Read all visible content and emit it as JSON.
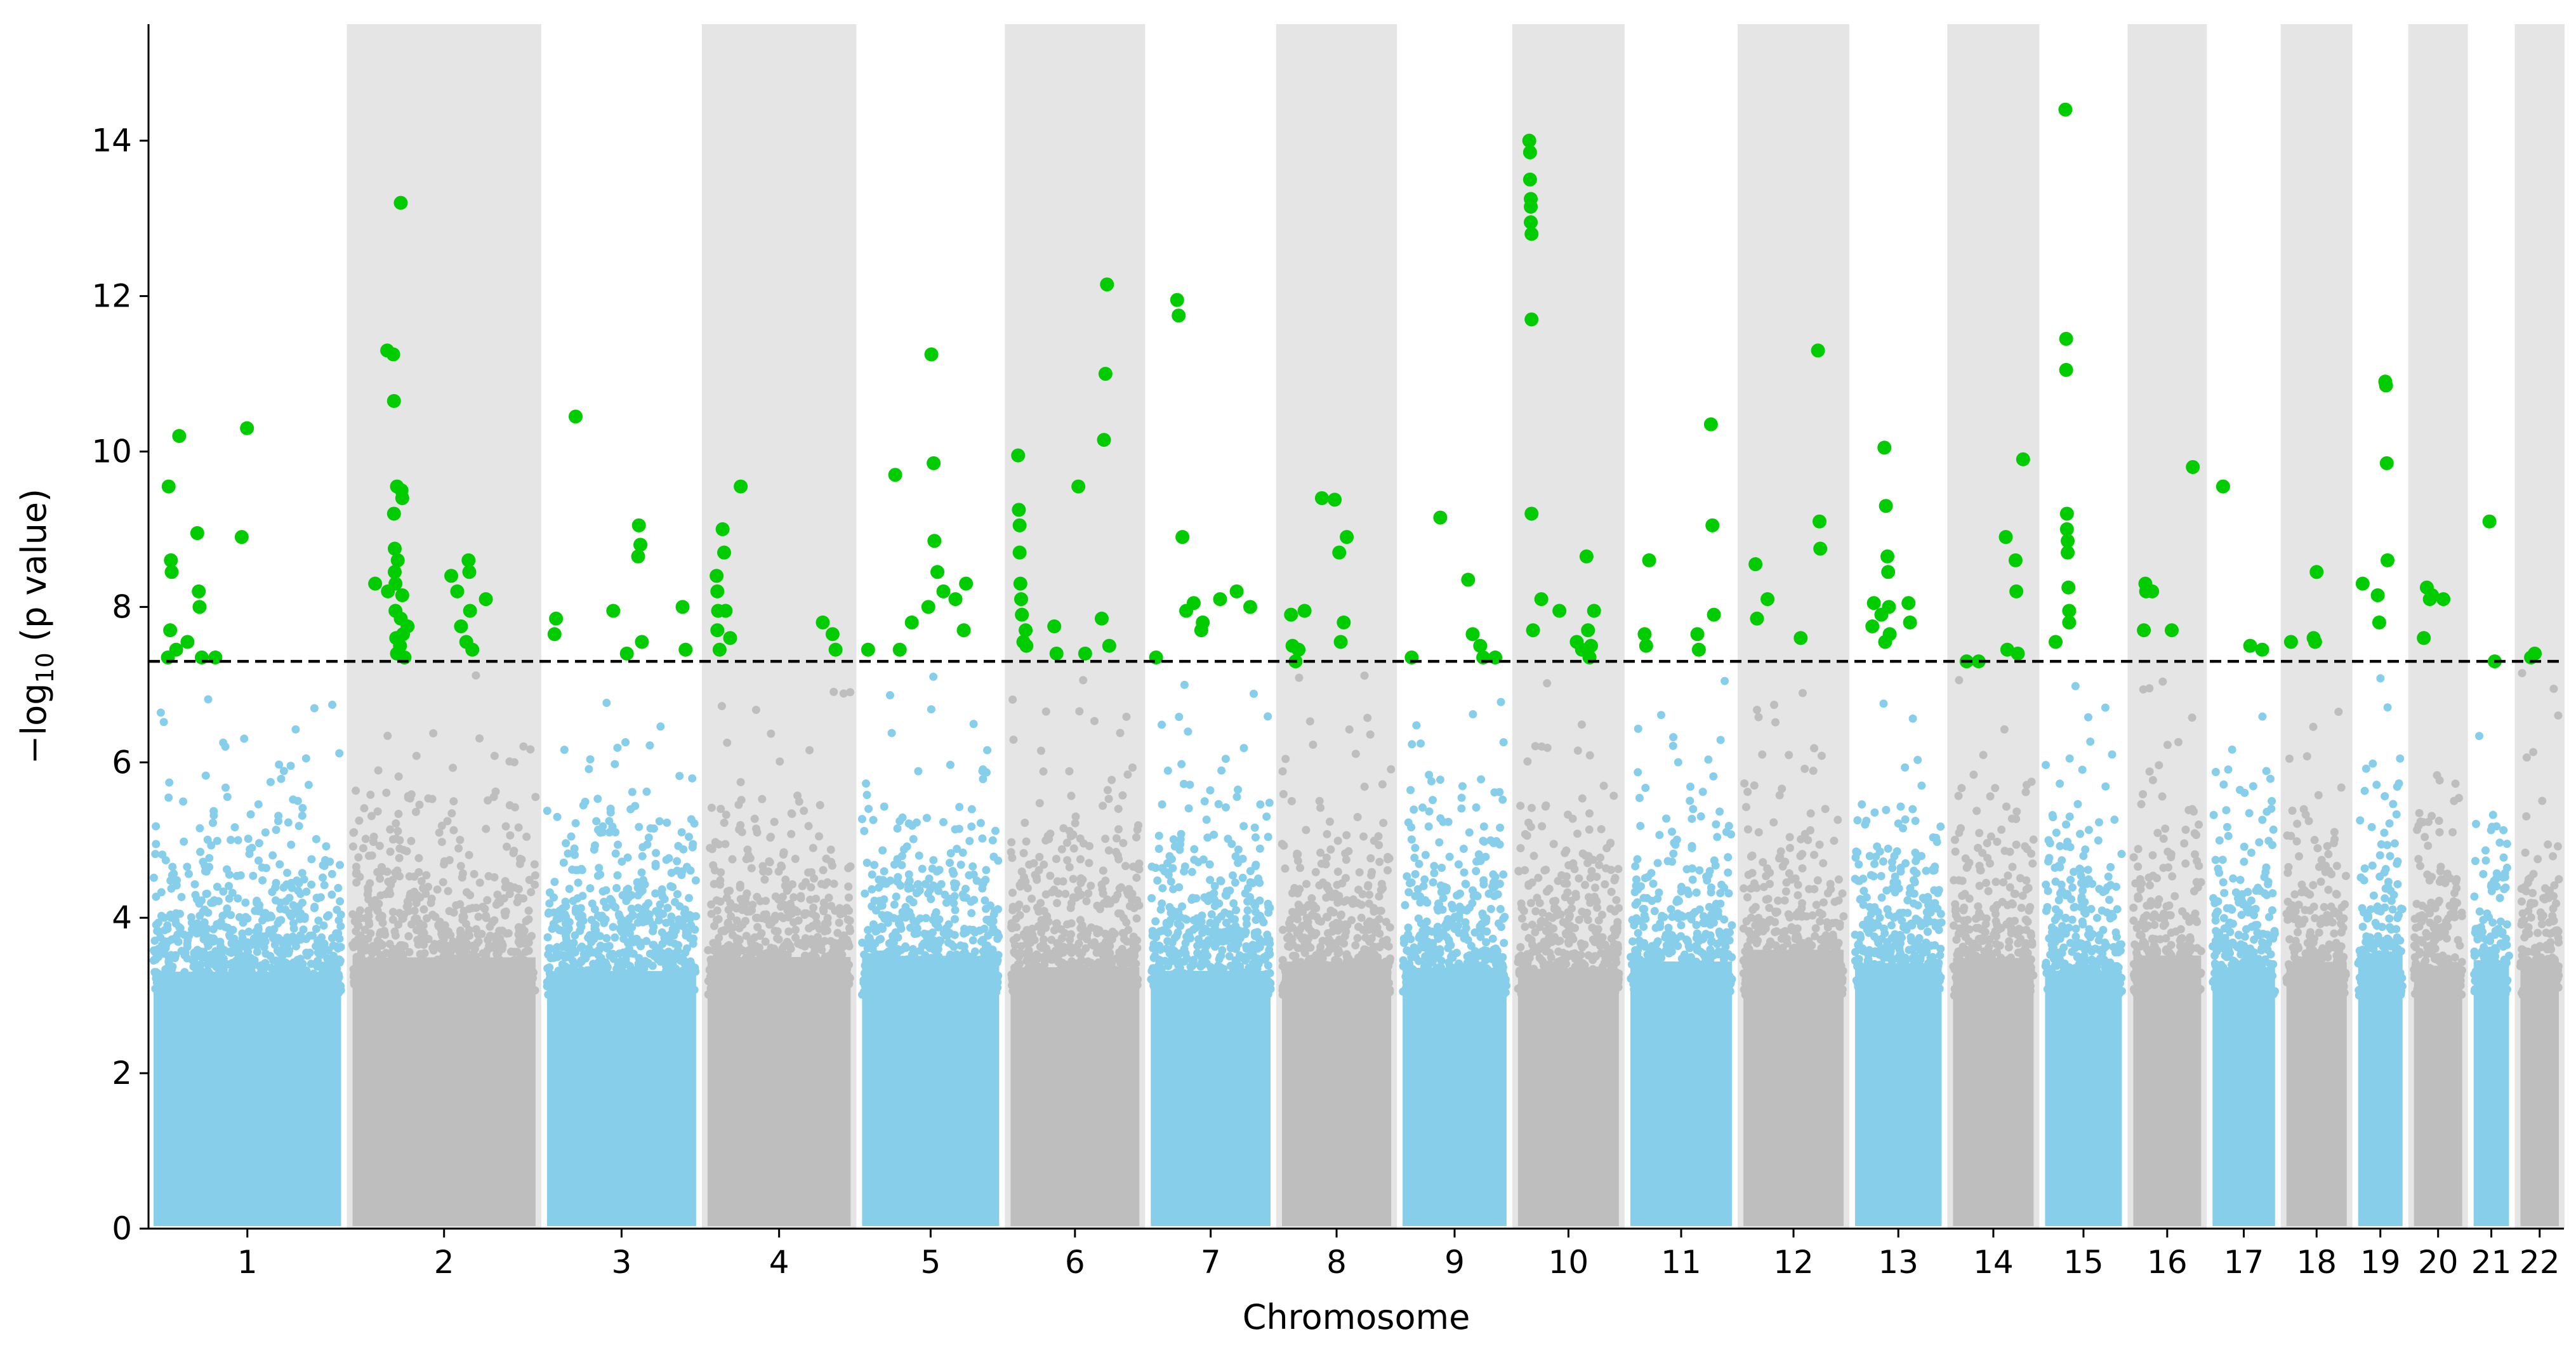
{
  "chart_data": {
    "type": "scatter",
    "title": "",
    "xlabel": "Chromosome",
    "ylabel_main": "−log",
    "ylabel_sub": "10",
    "ylabel_tail": " (p value)",
    "ylim": [
      0,
      15.5
    ],
    "yticks": [
      "0",
      "2",
      "4",
      "6",
      "8",
      "10",
      "12",
      "14"
    ],
    "significance_threshold": 7.3,
    "grid": false,
    "legend": "none",
    "colors": {
      "odd_chromosome": "#87ceeb",
      "even_chromosome": "#bebebe",
      "significant": "#00cc00",
      "even_band": "#e5e5e5",
      "threshold": "#000000"
    },
    "chromosomes": [
      {
        "label": "1",
        "start": 0,
        "end": 249
      },
      {
        "label": "2",
        "start": 249,
        "end": 492
      },
      {
        "label": "3",
        "start": 492,
        "end": 690
      },
      {
        "label": "4",
        "start": 690,
        "end": 880
      },
      {
        "label": "5",
        "start": 880,
        "end": 1062
      },
      {
        "label": "6",
        "start": 1062,
        "end": 1233
      },
      {
        "label": "7",
        "start": 1233,
        "end": 1392
      },
      {
        "label": "8",
        "start": 1392,
        "end": 1537
      },
      {
        "label": "9",
        "start": 1537,
        "end": 1675
      },
      {
        "label": "10",
        "start": 1675,
        "end": 1809
      },
      {
        "label": "11",
        "start": 1809,
        "end": 1944
      },
      {
        "label": "12",
        "start": 1944,
        "end": 2077
      },
      {
        "label": "13",
        "start": 2077,
        "end": 2192
      },
      {
        "label": "14",
        "start": 2192,
        "end": 2299
      },
      {
        "label": "15",
        "start": 2299,
        "end": 2401
      },
      {
        "label": "16",
        "start": 2401,
        "end": 2491
      },
      {
        "label": "17",
        "start": 2491,
        "end": 2574
      },
      {
        "label": "18",
        "start": 2574,
        "end": 2654
      },
      {
        "label": "19",
        "start": 2654,
        "end": 2713
      },
      {
        "label": "20",
        "start": 2713,
        "end": 2777
      },
      {
        "label": "21",
        "start": 2777,
        "end": 2824
      },
      {
        "label": "22",
        "start": 2824,
        "end": 2875
      }
    ],
    "significant_points": [
      {
        "chr": "1",
        "x": 20,
        "y": 9.55
      },
      {
        "chr": "1",
        "x": 23,
        "y": 8.6
      },
      {
        "chr": "1",
        "x": 24,
        "y": 8.45
      },
      {
        "chr": "1",
        "x": 22,
        "y": 7.7
      },
      {
        "chr": "1",
        "x": 19,
        "y": 7.35
      },
      {
        "chr": "1",
        "x": 34,
        "y": 10.2
      },
      {
        "chr": "1",
        "x": 30,
        "y": 7.45
      },
      {
        "chr": "1",
        "x": 45,
        "y": 7.55
      },
      {
        "chr": "1",
        "x": 58,
        "y": 8.95
      },
      {
        "chr": "1",
        "x": 60,
        "y": 8.2
      },
      {
        "chr": "1",
        "x": 61,
        "y": 8.0
      },
      {
        "chr": "1",
        "x": 64,
        "y": 7.35
      },
      {
        "chr": "1",
        "x": 117,
        "y": 8.9
      },
      {
        "chr": "1",
        "x": 124,
        "y": 10.3
      },
      {
        "chr": "1",
        "x": 82,
        "y": 7.35
      },
      {
        "chr": "2",
        "x": 279,
        "y": 8.3
      },
      {
        "chr": "2",
        "x": 295,
        "y": 11.3
      },
      {
        "chr": "2",
        "x": 303,
        "y": 11.25
      },
      {
        "chr": "2",
        "x": 304,
        "y": 10.65
      },
      {
        "chr": "2",
        "x": 296,
        "y": 8.2
      },
      {
        "chr": "2",
        "x": 304,
        "y": 9.2
      },
      {
        "chr": "2",
        "x": 305,
        "y": 8.75
      },
      {
        "chr": "2",
        "x": 305,
        "y": 8.45
      },
      {
        "chr": "2",
        "x": 306,
        "y": 8.3
      },
      {
        "chr": "2",
        "x": 306,
        "y": 7.95
      },
      {
        "chr": "2",
        "x": 307,
        "y": 7.6
      },
      {
        "chr": "2",
        "x": 308,
        "y": 7.4
      },
      {
        "chr": "2",
        "x": 308,
        "y": 9.55
      },
      {
        "chr": "2",
        "x": 309,
        "y": 8.6
      },
      {
        "chr": "2",
        "x": 312,
        "y": 7.5
      },
      {
        "chr": "2",
        "x": 313,
        "y": 7.85
      },
      {
        "chr": "2",
        "x": 314,
        "y": 9.5
      },
      {
        "chr": "2",
        "x": 315,
        "y": 9.4
      },
      {
        "chr": "2",
        "x": 315,
        "y": 8.15
      },
      {
        "chr": "2",
        "x": 316,
        "y": 7.65
      },
      {
        "chr": "2",
        "x": 318,
        "y": 7.35
      },
      {
        "chr": "2",
        "x": 322,
        "y": 7.75
      },
      {
        "chr": "2",
        "x": 313,
        "y": 13.2
      },
      {
        "chr": "2",
        "x": 380,
        "y": 8.4
      },
      {
        "chr": "2",
        "x": 388,
        "y": 8.2
      },
      {
        "chr": "2",
        "x": 393,
        "y": 7.75
      },
      {
        "chr": "2",
        "x": 400,
        "y": 7.55
      },
      {
        "chr": "2",
        "x": 403,
        "y": 8.6
      },
      {
        "chr": "2",
        "x": 404,
        "y": 8.45
      },
      {
        "chr": "2",
        "x": 405,
        "y": 7.95
      },
      {
        "chr": "2",
        "x": 408,
        "y": 7.45
      },
      {
        "chr": "2",
        "x": 426,
        "y": 8.1
      },
      {
        "chr": "3",
        "x": 502,
        "y": 7.65
      },
      {
        "chr": "3",
        "x": 504,
        "y": 7.85
      },
      {
        "chr": "3",
        "x": 530,
        "y": 10.45
      },
      {
        "chr": "3",
        "x": 580,
        "y": 7.95
      },
      {
        "chr": "3",
        "x": 598,
        "y": 7.4
      },
      {
        "chr": "3",
        "x": 614,
        "y": 9.05
      },
      {
        "chr": "3",
        "x": 616,
        "y": 8.8
      },
      {
        "chr": "3",
        "x": 613,
        "y": 8.65
      },
      {
        "chr": "3",
        "x": 618,
        "y": 7.55
      },
      {
        "chr": "3",
        "x": 672,
        "y": 8.0
      },
      {
        "chr": "3",
        "x": 676,
        "y": 7.45
      },
      {
        "chr": "4",
        "x": 702,
        "y": 8.4
      },
      {
        "chr": "4",
        "x": 703,
        "y": 8.2
      },
      {
        "chr": "4",
        "x": 704,
        "y": 7.95
      },
      {
        "chr": "4",
        "x": 703,
        "y": 7.7
      },
      {
        "chr": "4",
        "x": 706,
        "y": 7.45
      },
      {
        "chr": "4",
        "x": 710,
        "y": 9.0
      },
      {
        "chr": "4",
        "x": 712,
        "y": 8.7
      },
      {
        "chr": "4",
        "x": 714,
        "y": 7.95
      },
      {
        "chr": "4",
        "x": 720,
        "y": 7.6
      },
      {
        "chr": "4",
        "x": 734,
        "y": 9.55
      },
      {
        "chr": "4",
        "x": 843,
        "y": 7.8
      },
      {
        "chr": "4",
        "x": 856,
        "y": 7.65
      },
      {
        "chr": "4",
        "x": 860,
        "y": 7.45
      },
      {
        "chr": "5",
        "x": 888,
        "y": 7.45
      },
      {
        "chr": "5",
        "x": 924,
        "y": 9.7
      },
      {
        "chr": "5",
        "x": 930,
        "y": 7.45
      },
      {
        "chr": "5",
        "x": 946,
        "y": 7.8
      },
      {
        "chr": "5",
        "x": 968,
        "y": 8.0
      },
      {
        "chr": "5",
        "x": 972,
        "y": 11.25
      },
      {
        "chr": "5",
        "x": 975,
        "y": 9.85
      },
      {
        "chr": "5",
        "x": 976,
        "y": 8.85
      },
      {
        "chr": "5",
        "x": 980,
        "y": 8.45
      },
      {
        "chr": "5",
        "x": 988,
        "y": 8.2
      },
      {
        "chr": "5",
        "x": 1004,
        "y": 8.1
      },
      {
        "chr": "5",
        "x": 1018,
        "y": 8.3
      },
      {
        "chr": "5",
        "x": 1015,
        "y": 7.7
      },
      {
        "chr": "6",
        "x": 1072,
        "y": 9.95
      },
      {
        "chr": "6",
        "x": 1073,
        "y": 9.25
      },
      {
        "chr": "6",
        "x": 1074,
        "y": 9.05
      },
      {
        "chr": "6",
        "x": 1074,
        "y": 8.7
      },
      {
        "chr": "6",
        "x": 1075,
        "y": 8.3
      },
      {
        "chr": "6",
        "x": 1076,
        "y": 8.1
      },
      {
        "chr": "6",
        "x": 1077,
        "y": 7.9
      },
      {
        "chr": "6",
        "x": 1079,
        "y": 7.55
      },
      {
        "chr": "6",
        "x": 1083,
        "y": 7.5
      },
      {
        "chr": "6",
        "x": 1082,
        "y": 7.7
      },
      {
        "chr": "6",
        "x": 1120,
        "y": 7.75
      },
      {
        "chr": "6",
        "x": 1123,
        "y": 7.4
      },
      {
        "chr": "6",
        "x": 1152,
        "y": 9.55
      },
      {
        "chr": "6",
        "x": 1161,
        "y": 7.4
      },
      {
        "chr": "6",
        "x": 1183,
        "y": 7.85
      },
      {
        "chr": "6",
        "x": 1186,
        "y": 10.15
      },
      {
        "chr": "6",
        "x": 1188,
        "y": 11.0
      },
      {
        "chr": "6",
        "x": 1190,
        "y": 12.15
      },
      {
        "chr": "6",
        "x": 1193,
        "y": 7.5
      },
      {
        "chr": "7",
        "x": 1240,
        "y": 7.35
      },
      {
        "chr": "7",
        "x": 1268,
        "y": 11.95
      },
      {
        "chr": "7",
        "x": 1270,
        "y": 11.75
      },
      {
        "chr": "7",
        "x": 1275,
        "y": 8.9
      },
      {
        "chr": "7",
        "x": 1280,
        "y": 7.95
      },
      {
        "chr": "7",
        "x": 1290,
        "y": 8.05
      },
      {
        "chr": "7",
        "x": 1300,
        "y": 7.7
      },
      {
        "chr": "7",
        "x": 1302,
        "y": 7.8
      },
      {
        "chr": "7",
        "x": 1325,
        "y": 8.1
      },
      {
        "chr": "7",
        "x": 1347,
        "y": 8.2
      },
      {
        "chr": "7",
        "x": 1365,
        "y": 8.0
      },
      {
        "chr": "8",
        "x": 1404,
        "y": 7.9
      },
      {
        "chr": "8",
        "x": 1406,
        "y": 7.5
      },
      {
        "chr": "8",
        "x": 1410,
        "y": 7.3
      },
      {
        "chr": "8",
        "x": 1414,
        "y": 7.45
      },
      {
        "chr": "8",
        "x": 1422,
        "y": 7.95
      },
      {
        "chr": "8",
        "x": 1445,
        "y": 9.4
      },
      {
        "chr": "8",
        "x": 1462,
        "y": 9.38
      },
      {
        "chr": "8",
        "x": 1468,
        "y": 8.7
      },
      {
        "chr": "8",
        "x": 1470,
        "y": 7.55
      },
      {
        "chr": "8",
        "x": 1474,
        "y": 7.8
      },
      {
        "chr": "8",
        "x": 1478,
        "y": 8.9
      },
      {
        "chr": "9",
        "x": 1549,
        "y": 7.35
      },
      {
        "chr": "9",
        "x": 1587,
        "y": 9.15
      },
      {
        "chr": "9",
        "x": 1624,
        "y": 8.35
      },
      {
        "chr": "9",
        "x": 1630,
        "y": 7.65
      },
      {
        "chr": "9",
        "x": 1640,
        "y": 7.5
      },
      {
        "chr": "9",
        "x": 1644,
        "y": 7.35
      },
      {
        "chr": "9",
        "x": 1660,
        "y": 7.35
      },
      {
        "chr": "10",
        "x": 1690,
        "y": 14.0
      },
      {
        "chr": "10",
        "x": 1691,
        "y": 13.85
      },
      {
        "chr": "10",
        "x": 1691,
        "y": 13.5
      },
      {
        "chr": "10",
        "x": 1692,
        "y": 13.25
      },
      {
        "chr": "10",
        "x": 1692,
        "y": 13.15
      },
      {
        "chr": "10",
        "x": 1692,
        "y": 12.95
      },
      {
        "chr": "10",
        "x": 1693,
        "y": 12.8
      },
      {
        "chr": "10",
        "x": 1693,
        "y": 11.7
      },
      {
        "chr": "10",
        "x": 1693,
        "y": 9.2
      },
      {
        "chr": "10",
        "x": 1695,
        "y": 7.7
      },
      {
        "chr": "10",
        "x": 1706,
        "y": 8.1
      },
      {
        "chr": "10",
        "x": 1730,
        "y": 7.95
      },
      {
        "chr": "10",
        "x": 1753,
        "y": 7.55
      },
      {
        "chr": "10",
        "x": 1760,
        "y": 7.45
      },
      {
        "chr": "10",
        "x": 1766,
        "y": 8.65
      },
      {
        "chr": "10",
        "x": 1768,
        "y": 7.7
      },
      {
        "chr": "10",
        "x": 1770,
        "y": 7.35
      },
      {
        "chr": "10",
        "x": 1776,
        "y": 7.95
      },
      {
        "chr": "10",
        "x": 1772,
        "y": 7.5
      },
      {
        "chr": "11",
        "x": 1828,
        "y": 7.65
      },
      {
        "chr": "11",
        "x": 1830,
        "y": 7.5
      },
      {
        "chr": "11",
        "x": 1834,
        "y": 8.6
      },
      {
        "chr": "11",
        "x": 1898,
        "y": 7.65
      },
      {
        "chr": "11",
        "x": 1900,
        "y": 7.45
      },
      {
        "chr": "11",
        "x": 1916,
        "y": 10.35
      },
      {
        "chr": "11",
        "x": 1918,
        "y": 9.05
      },
      {
        "chr": "11",
        "x": 1920,
        "y": 7.9
      },
      {
        "chr": "12",
        "x": 1960,
        "y": 8.55
      },
      {
        "chr": "12",
        "x": 1962,
        "y": 7.85
      },
      {
        "chr": "12",
        "x": 1976,
        "y": 8.1
      },
      {
        "chr": "12",
        "x": 2020,
        "y": 7.6
      },
      {
        "chr": "12",
        "x": 2043,
        "y": 11.3
      },
      {
        "chr": "12",
        "x": 2045,
        "y": 9.1
      },
      {
        "chr": "12",
        "x": 2046,
        "y": 8.75
      },
      {
        "chr": "13",
        "x": 2100,
        "y": 7.75
      },
      {
        "chr": "13",
        "x": 2102,
        "y": 8.05
      },
      {
        "chr": "13",
        "x": 2112,
        "y": 7.9
      },
      {
        "chr": "13",
        "x": 2116,
        "y": 10.05
      },
      {
        "chr": "13",
        "x": 2118,
        "y": 9.3
      },
      {
        "chr": "13",
        "x": 2120,
        "y": 8.65
      },
      {
        "chr": "13",
        "x": 2121,
        "y": 8.45
      },
      {
        "chr": "13",
        "x": 2122,
        "y": 8.0
      },
      {
        "chr": "13",
        "x": 2123,
        "y": 7.65
      },
      {
        "chr": "13",
        "x": 2117,
        "y": 7.55
      },
      {
        "chr": "13",
        "x": 2148,
        "y": 8.05
      },
      {
        "chr": "13",
        "x": 2150,
        "y": 7.8
      },
      {
        "chr": "14",
        "x": 2210,
        "y": 7.3
      },
      {
        "chr": "14",
        "x": 2226,
        "y": 7.3
      },
      {
        "chr": "14",
        "x": 2262,
        "y": 8.9
      },
      {
        "chr": "14",
        "x": 2264,
        "y": 7.45
      },
      {
        "chr": "14",
        "x": 2275,
        "y": 8.6
      },
      {
        "chr": "14",
        "x": 2276,
        "y": 8.2
      },
      {
        "chr": "14",
        "x": 2278,
        "y": 7.4
      },
      {
        "chr": "14",
        "x": 2285,
        "y": 9.9
      },
      {
        "chr": "15",
        "x": 2313,
        "y": 7.55
      },
      {
        "chr": "15",
        "x": 2326,
        "y": 14.4
      },
      {
        "chr": "15",
        "x": 2327,
        "y": 11.45
      },
      {
        "chr": "15",
        "x": 2327,
        "y": 11.05
      },
      {
        "chr": "15",
        "x": 2328,
        "y": 9.2
      },
      {
        "chr": "15",
        "x": 2328,
        "y": 9.0
      },
      {
        "chr": "15",
        "x": 2329,
        "y": 8.85
      },
      {
        "chr": "15",
        "x": 2329,
        "y": 8.7
      },
      {
        "chr": "15",
        "x": 2330,
        "y": 8.25
      },
      {
        "chr": "15",
        "x": 2331,
        "y": 7.95
      },
      {
        "chr": "15",
        "x": 2331,
        "y": 7.8
      },
      {
        "chr": "16",
        "x": 2415,
        "y": 7.7
      },
      {
        "chr": "16",
        "x": 2417,
        "y": 8.3
      },
      {
        "chr": "16",
        "x": 2418,
        "y": 8.2
      },
      {
        "chr": "16",
        "x": 2426,
        "y": 8.2
      },
      {
        "chr": "16",
        "x": 2452,
        "y": 7.7
      },
      {
        "chr": "16",
        "x": 2480,
        "y": 9.8
      },
      {
        "chr": "17",
        "x": 2505,
        "y": 9.55
      },
      {
        "chr": "17",
        "x": 2541,
        "y": 7.5
      },
      {
        "chr": "17",
        "x": 2557,
        "y": 7.45
      },
      {
        "chr": "18",
        "x": 2580,
        "y": 7.55
      },
      {
        "chr": "18",
        "x": 2610,
        "y": 7.6
      },
      {
        "chr": "18",
        "x": 2614,
        "y": 8.45
      },
      {
        "chr": "18",
        "x": 2612,
        "y": 7.55
      },
      {
        "chr": "19",
        "x": 2660,
        "y": 8.3
      },
      {
        "chr": "19",
        "x": 2680,
        "y": 8.15
      },
      {
        "chr": "19",
        "x": 2682,
        "y": 7.8
      },
      {
        "chr": "19",
        "x": 2690,
        "y": 10.9
      },
      {
        "chr": "19",
        "x": 2691,
        "y": 10.85
      },
      {
        "chr": "19",
        "x": 2692,
        "y": 9.85
      },
      {
        "chr": "19",
        "x": 2693,
        "y": 8.6
      },
      {
        "chr": "20",
        "x": 2730,
        "y": 8.25
      },
      {
        "chr": "20",
        "x": 2734,
        "y": 8.1
      },
      {
        "chr": "20",
        "x": 2737,
        "y": 8.15
      },
      {
        "chr": "20",
        "x": 2752,
        "y": 8.1
      },
      {
        "chr": "20",
        "x": 2726,
        "y": 7.6
      },
      {
        "chr": "21",
        "x": 2798,
        "y": 9.1
      },
      {
        "chr": "21",
        "x": 2805,
        "y": 7.3
      },
      {
        "chr": "22",
        "x": 2838,
        "y": 7.35
      },
      {
        "chr": "22",
        "x": 2843,
        "y": 7.4
      }
    ]
  }
}
